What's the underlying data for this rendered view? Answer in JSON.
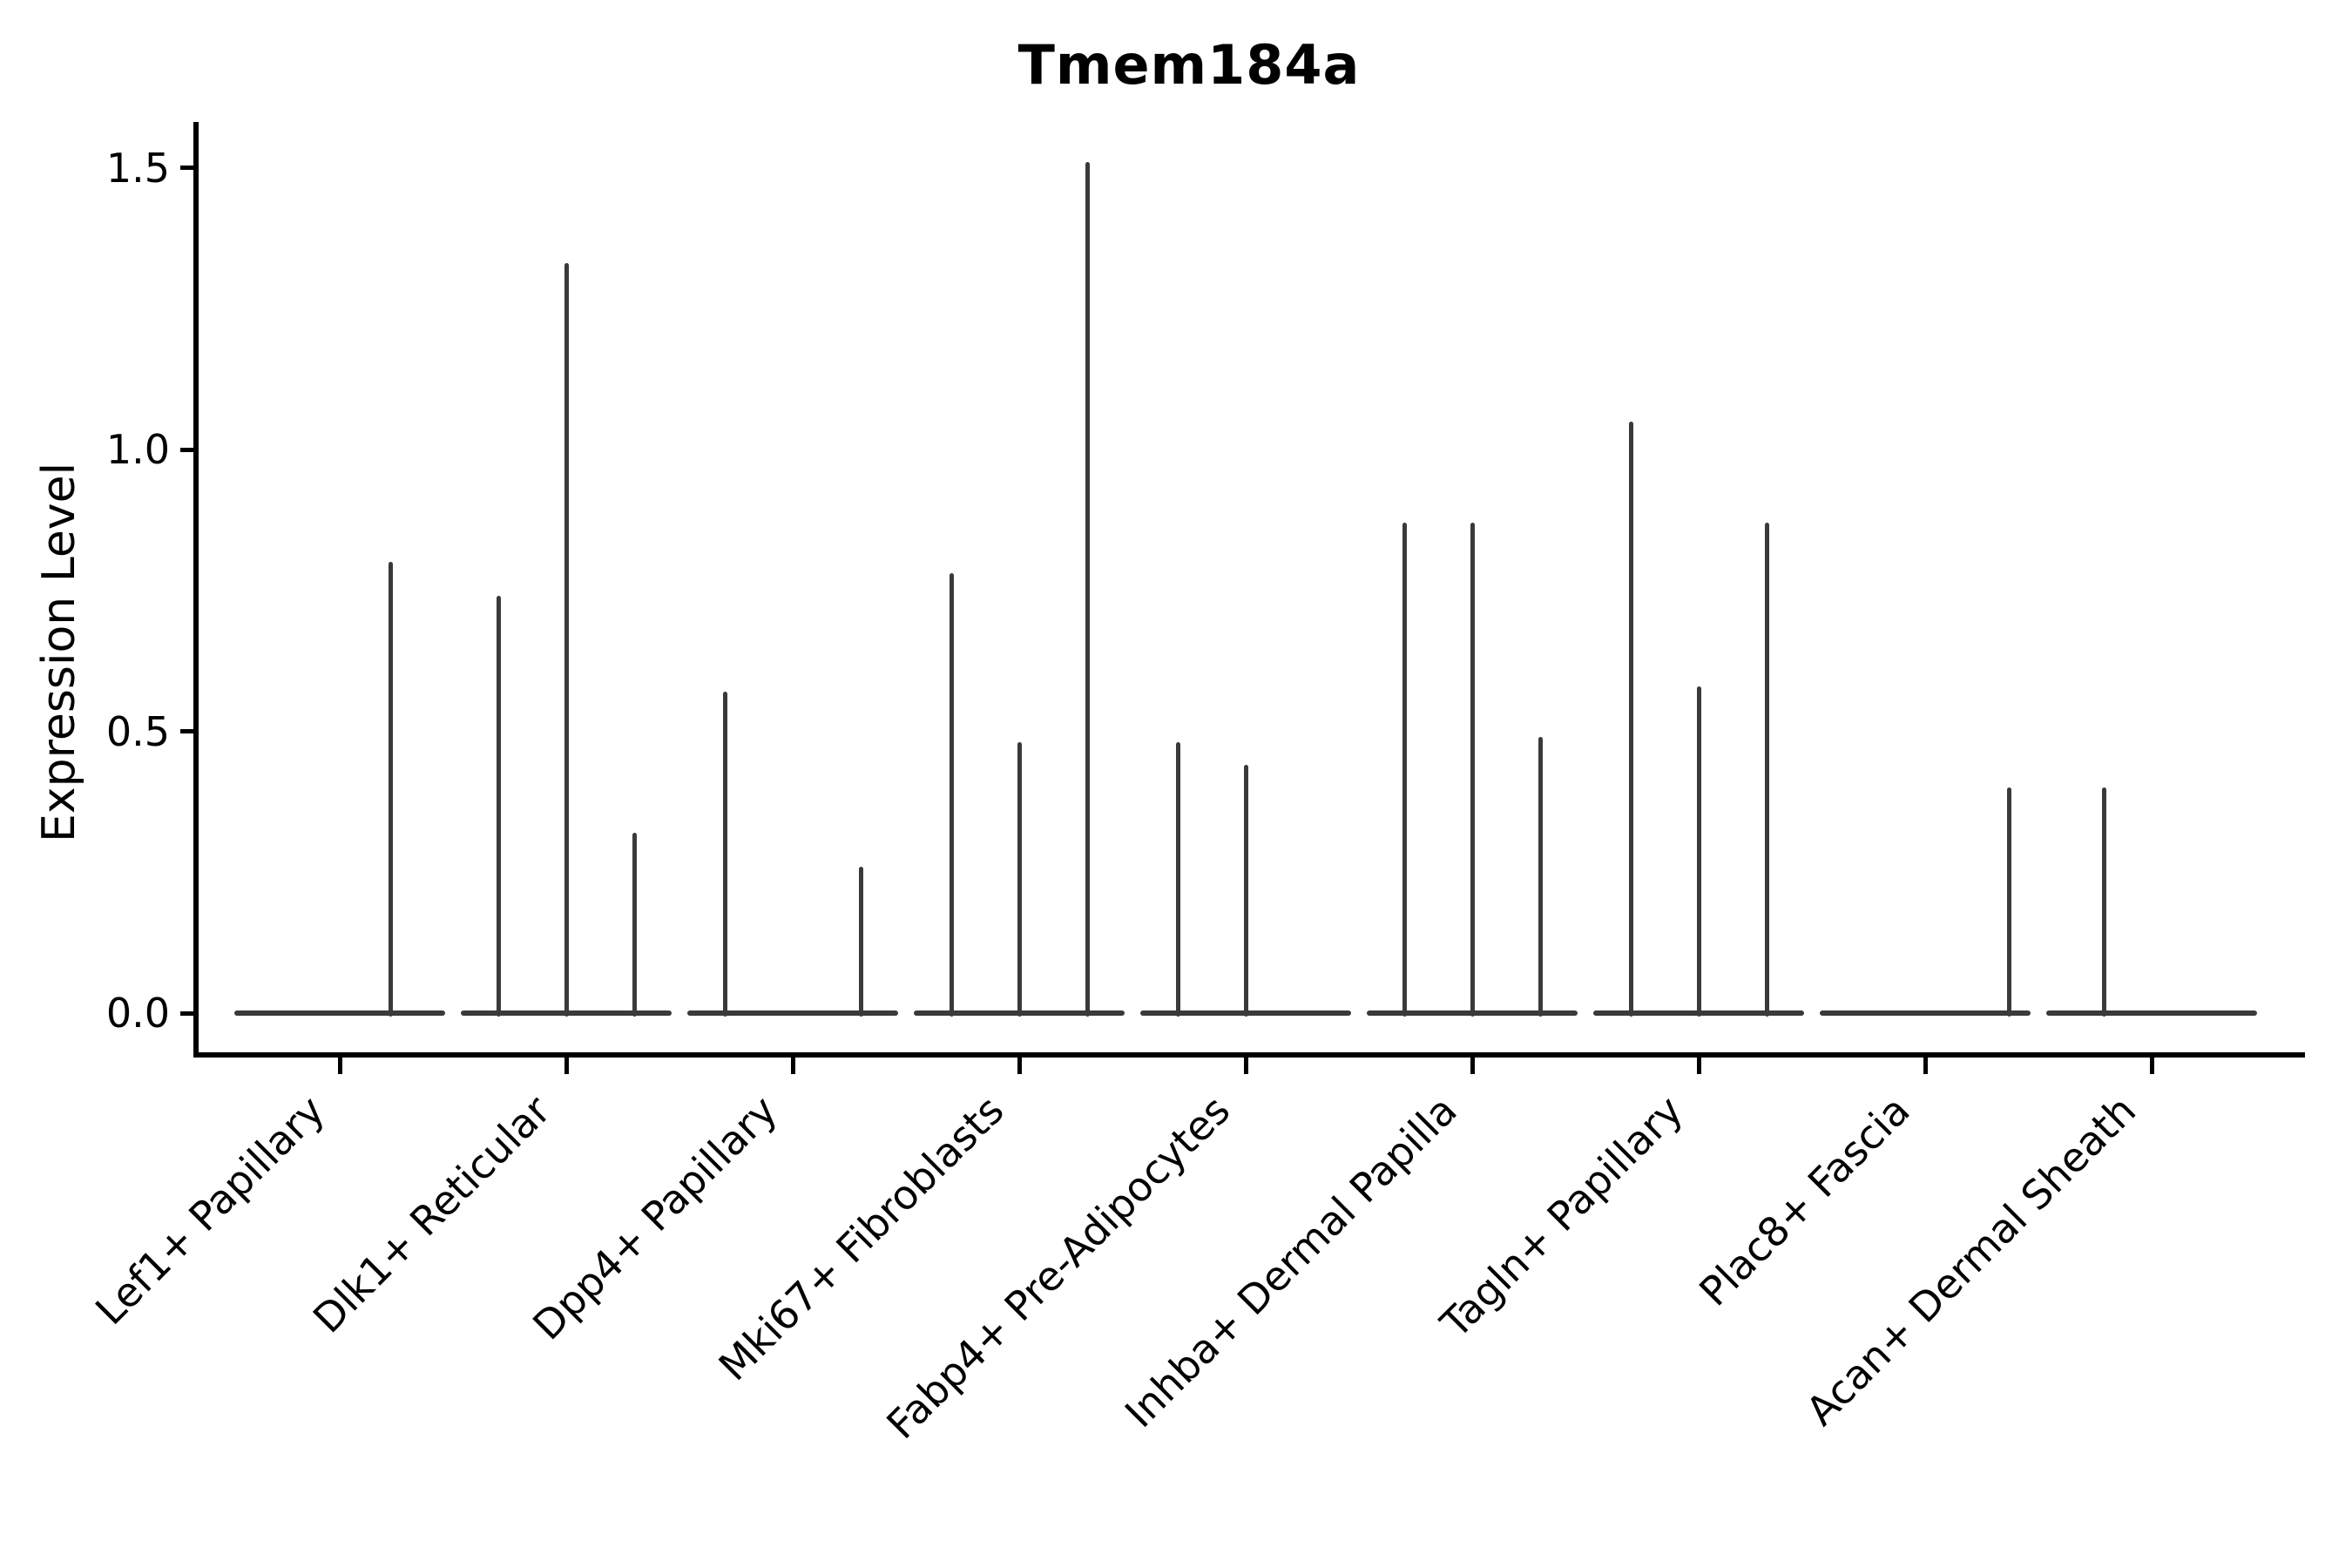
{
  "chart_data": {
    "type": "violin",
    "title": "Tmem184a",
    "ylabel": "Expression Level",
    "xlabel": "",
    "grid": false,
    "legend": "none",
    "ylim": [
      -0.07,
      1.58
    ],
    "yticks": [
      {
        "value": 0.0,
        "label": "0.0"
      },
      {
        "value": 0.5,
        "label": "0.5"
      },
      {
        "value": 1.0,
        "label": "1.0"
      },
      {
        "value": 1.5,
        "label": "1.5"
      }
    ],
    "categories": [
      "Lef1+ Papillary",
      "Dlk1+ Reticular",
      "Dpp4+ Papillary",
      "Mki67+ Fibroblasts",
      "Fabp4+ Pre-Adipocytes",
      "Inhba+ Dermal Papilla",
      "Tagln+ Papillary",
      "Plac8+ Fascia",
      "Acan+ Dermal Sheath"
    ],
    "violins": [
      {
        "category": "Lef1+ Papillary",
        "baseline_value": 0.0,
        "spikes": [
          {
            "offset": 0.225,
            "max": 0.8
          }
        ]
      },
      {
        "category": "Dlk1+ Reticular",
        "baseline_value": 0.0,
        "spikes": [
          {
            "offset": -0.3,
            "max": 0.74
          },
          {
            "offset": 0.0,
            "max": 1.33
          },
          {
            "offset": 0.3,
            "max": 0.32
          }
        ]
      },
      {
        "category": "Dpp4+ Papillary",
        "baseline_value": 0.0,
        "spikes": [
          {
            "offset": -0.3,
            "max": 0.57
          },
          {
            "offset": 0.3,
            "max": 0.26
          }
        ]
      },
      {
        "category": "Mki67+ Fibroblasts",
        "baseline_value": 0.0,
        "spikes": [
          {
            "offset": -0.3,
            "max": 0.78
          },
          {
            "offset": 0.0,
            "max": 0.48
          },
          {
            "offset": 0.3,
            "max": 1.51
          }
        ]
      },
      {
        "category": "Fabp4+ Pre-Adipocytes",
        "baseline_value": 0.0,
        "spikes": [
          {
            "offset": -0.3,
            "max": 0.48
          },
          {
            "offset": 0.0,
            "max": 0.44
          }
        ]
      },
      {
        "category": "Inhba+ Dermal Papilla",
        "baseline_value": 0.0,
        "spikes": [
          {
            "offset": -0.3,
            "max": 0.87
          },
          {
            "offset": 0.0,
            "max": 0.87
          },
          {
            "offset": 0.3,
            "max": 0.49
          }
        ]
      },
      {
        "category": "Tagln+ Papillary",
        "baseline_value": 0.0,
        "spikes": [
          {
            "offset": -0.3,
            "max": 1.05
          },
          {
            "offset": 0.0,
            "max": 0.58
          },
          {
            "offset": 0.3,
            "max": 0.87
          }
        ]
      },
      {
        "category": "Plac8+ Fascia",
        "baseline_value": 0.0,
        "spikes": [
          {
            "offset": 0.37,
            "max": 0.4
          }
        ]
      },
      {
        "category": "Acan+ Dermal Sheath",
        "baseline_value": 0.0,
        "spikes": [
          {
            "offset": -0.21,
            "max": 0.4
          }
        ]
      }
    ]
  },
  "style": {
    "violin_color": "#3a3a3a",
    "axis_color": "#000000",
    "text_color": "#000000",
    "background": "#ffffff"
  }
}
